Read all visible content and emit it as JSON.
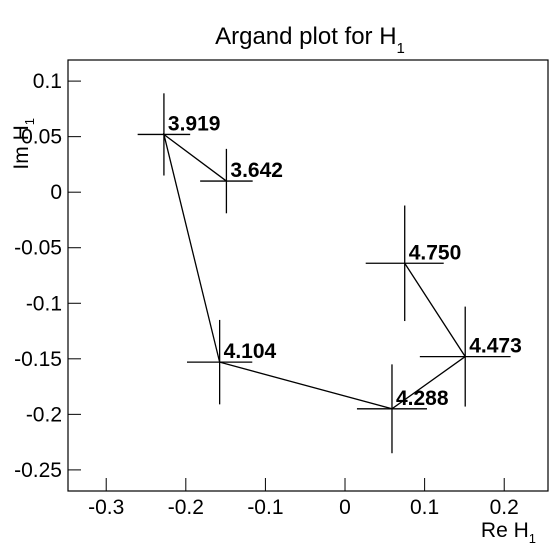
{
  "chart_data": {
    "type": "scatter",
    "title": "Argand plot for H",
    "title_sub": "1",
    "x_label": "Re H",
    "x_label_sub": "1",
    "y_label": "Im H",
    "y_label_sub": "1",
    "xlim": [
      -0.348,
      0.255
    ],
    "ylim": [
      -0.269,
      0.119
    ],
    "xticks": [
      -0.3,
      -0.2,
      -0.1,
      0,
      0.1,
      0.2
    ],
    "yticks": [
      0.1,
      0.05,
      0,
      -0.05,
      -0.1,
      -0.15,
      -0.2,
      -0.25
    ],
    "connect": true,
    "series": [
      {
        "color": "#000000",
        "x": [
          -0.149,
          -0.2275,
          -0.1575,
          0.059,
          0.151,
          0.075
        ],
        "y": [
          0.01,
          0.052,
          -0.153,
          -0.195,
          -0.148,
          -0.064
        ],
        "x_err": [
          0.033,
          0.033,
          0.041,
          0.044,
          0.057,
          0.049
        ],
        "y_err": [
          0.029,
          0.037,
          0.038,
          0.04,
          0.045,
          0.052
        ],
        "labels": [
          "3.642",
          "3.919",
          "4.104",
          "4.288",
          "4.473",
          "4.750"
        ]
      }
    ]
  }
}
